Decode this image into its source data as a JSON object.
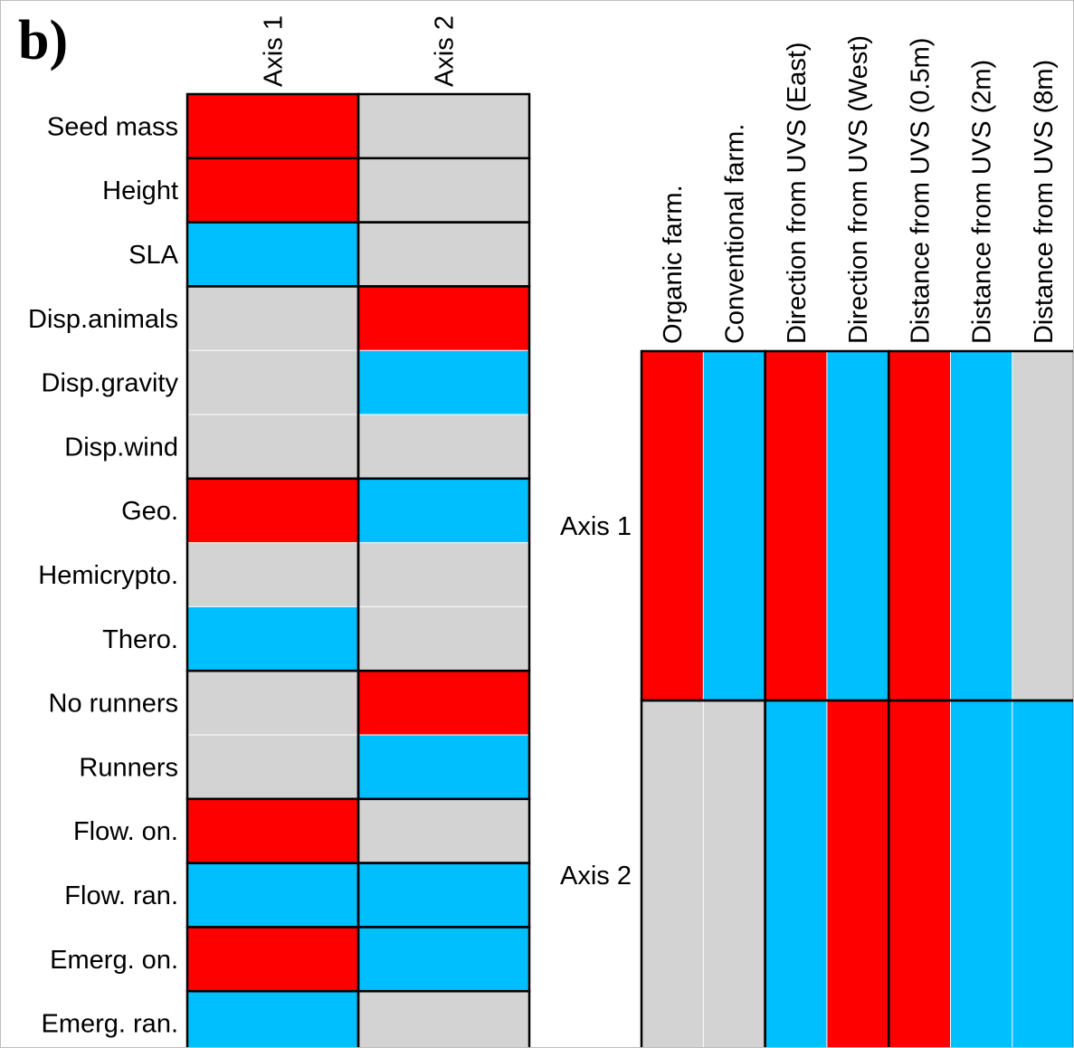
{
  "panel_label": "b)",
  "colors": {
    "positive": "#ff0000",
    "negative": "#00bfff",
    "neutral": "#d3d3d3"
  },
  "chart_data": [
    {
      "type": "heatmap",
      "columns": [
        "Axis 1",
        "Axis 2"
      ],
      "rows": [
        "Seed mass",
        "Height",
        "SLA",
        "Disp.animals",
        "Disp.gravity",
        "Disp.wind",
        "Geo.",
        "Hemicrypto.",
        "Thero.",
        "No runners",
        "Runners",
        "Flow. on.",
        "Flow. ran.",
        "Emerg. on.",
        "Emerg. ran."
      ],
      "row_groups": [
        [
          0
        ],
        [
          1
        ],
        [
          2
        ],
        [
          3,
          4,
          5
        ],
        [
          6,
          7,
          8
        ],
        [
          9,
          10
        ],
        [
          11
        ],
        [
          12
        ],
        [
          13
        ],
        [
          14
        ]
      ],
      "values": [
        [
          "positive",
          "neutral"
        ],
        [
          "positive",
          "neutral"
        ],
        [
          "negative",
          "neutral"
        ],
        [
          "neutral",
          "positive"
        ],
        [
          "neutral",
          "negative"
        ],
        [
          "neutral",
          "neutral"
        ],
        [
          "positive",
          "negative"
        ],
        [
          "neutral",
          "neutral"
        ],
        [
          "negative",
          "neutral"
        ],
        [
          "neutral",
          "positive"
        ],
        [
          "neutral",
          "negative"
        ],
        [
          "positive",
          "neutral"
        ],
        [
          "negative",
          "negative"
        ],
        [
          "positive",
          "negative"
        ],
        [
          "negative",
          "neutral"
        ]
      ]
    },
    {
      "type": "heatmap",
      "columns": [
        "Organic farm.",
        "Conventional farm.",
        "Direction from UVS (East)",
        "Direction from UVS (West)",
        "Distance from UVS (0.5m)",
        "Distance from UVS (2m)",
        "Distance from UVS (8m)"
      ],
      "column_groups": [
        [
          0,
          1
        ],
        [
          2,
          3
        ],
        [
          4,
          5,
          6
        ]
      ],
      "rows": [
        "Axis 1",
        "Axis 2"
      ],
      "values": [
        [
          "positive",
          "negative",
          "positive",
          "negative",
          "positive",
          "negative",
          "neutral"
        ],
        [
          "neutral",
          "neutral",
          "negative",
          "positive",
          "positive",
          "negative",
          "negative"
        ]
      ]
    }
  ]
}
